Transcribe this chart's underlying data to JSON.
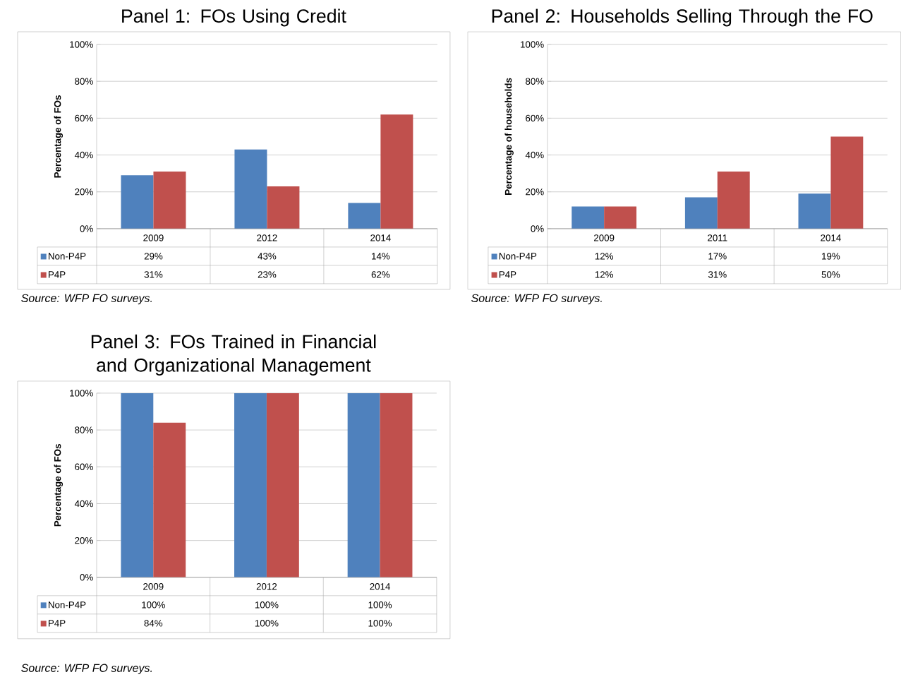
{
  "chart_data": [
    {
      "type": "bar",
      "title": "Panel 1: FOs Using Credit",
      "ylabel": "Percentage of FOs",
      "categories": [
        "2009",
        "2012",
        "2014"
      ],
      "series": [
        {
          "name": "Non-P4P",
          "color": "#4f81bd",
          "values": [
            29,
            43,
            14
          ],
          "value_labels": [
            "29%",
            "43%",
            "14%"
          ]
        },
        {
          "name": "P4P",
          "color": "#c0504d",
          "values": [
            31,
            23,
            62
          ],
          "value_labels": [
            "31%",
            "23%",
            "62%"
          ]
        }
      ],
      "ylim": [
        0,
        100
      ],
      "yticks": [
        {
          "value": 0,
          "label": "0%"
        },
        {
          "value": 20,
          "label": "20%"
        },
        {
          "value": 40,
          "label": "40%"
        },
        {
          "value": 60,
          "label": "60%"
        },
        {
          "value": 80,
          "label": "80%"
        },
        {
          "value": 100,
          "label": "100%"
        }
      ],
      "grid": "y",
      "legend": "bottom",
      "annotations": [
        "Source: WFP FO surveys."
      ]
    },
    {
      "type": "bar",
      "title": "Panel 2: Households Selling Through the FO",
      "ylabel": "Percentage of households",
      "categories": [
        "2009",
        "2011",
        "2014"
      ],
      "series": [
        {
          "name": "Non-P4P",
          "color": "#4f81bd",
          "values": [
            12,
            17,
            19
          ],
          "value_labels": [
            "12%",
            "17%",
            "19%"
          ]
        },
        {
          "name": "P4P",
          "color": "#c0504d",
          "values": [
            12,
            31,
            50
          ],
          "value_labels": [
            "12%",
            "31%",
            "50%"
          ]
        }
      ],
      "ylim": [
        0,
        100
      ],
      "yticks": [
        {
          "value": 0,
          "label": "0%"
        },
        {
          "value": 20,
          "label": "20%"
        },
        {
          "value": 40,
          "label": "40%"
        },
        {
          "value": 60,
          "label": "60%"
        },
        {
          "value": 80,
          "label": "80%"
        },
        {
          "value": 100,
          "label": "100%"
        }
      ],
      "grid": "y",
      "legend": "bottom",
      "annotations": [
        "Source: WFP FO surveys."
      ]
    },
    {
      "type": "bar",
      "title": "Panel 3: FOs Trained in Financial and Organizational Management",
      "ylabel": "Percentage of FOs",
      "categories": [
        "2009",
        "2012",
        "2014"
      ],
      "series": [
        {
          "name": "Non-P4P",
          "color": "#4f81bd",
          "values": [
            100,
            100,
            100
          ],
          "value_labels": [
            "100%",
            "100%",
            "100%"
          ]
        },
        {
          "name": "P4P",
          "color": "#c0504d",
          "values": [
            84,
            100,
            100
          ],
          "value_labels": [
            "84%",
            "100%",
            "100%"
          ]
        }
      ],
      "ylim": [
        0,
        100
      ],
      "yticks": [
        {
          "value": 0,
          "label": "0%"
        },
        {
          "value": 20,
          "label": "20%"
        },
        {
          "value": 40,
          "label": "40%"
        },
        {
          "value": 60,
          "label": "60%"
        },
        {
          "value": 80,
          "label": "80%"
        },
        {
          "value": 100,
          "label": "100%"
        }
      ],
      "grid": "y",
      "legend": "bottom",
      "annotations": [
        "Source: WFP FO surveys."
      ]
    }
  ]
}
